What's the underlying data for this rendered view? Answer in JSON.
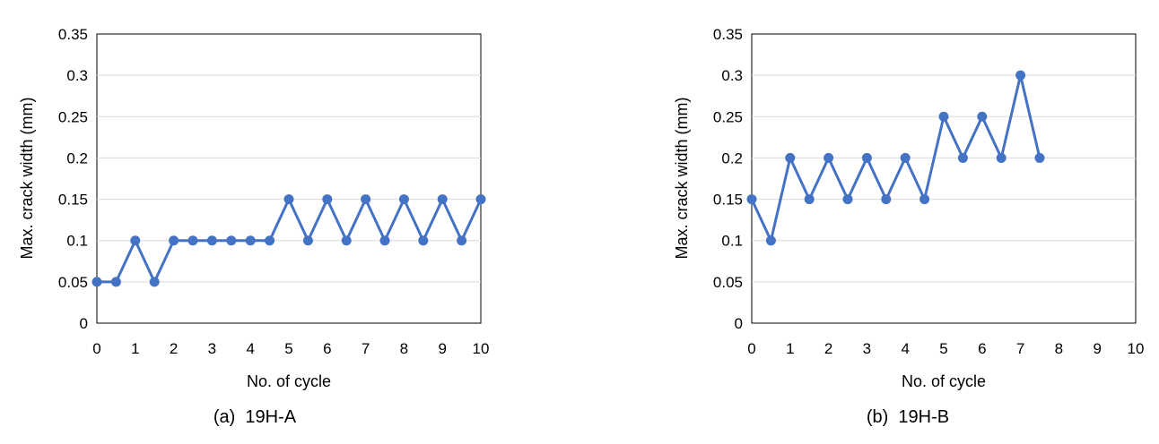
{
  "chart_data": [
    {
      "type": "line",
      "caption": "(a)  19H-A",
      "xlabel": "No. of cycle",
      "ylabel": "Max. crack width (mm)",
      "xlim": [
        0,
        10
      ],
      "ylim": [
        0,
        0.35
      ],
      "x_ticks": [
        0,
        1,
        2,
        3,
        4,
        5,
        6,
        7,
        8,
        9,
        10
      ],
      "y_ticks": [
        0,
        0.05,
        0.1,
        0.15,
        0.2,
        0.25,
        0.3,
        0.35
      ],
      "y_tick_labels": [
        "0",
        "0.05",
        "0.1",
        "0.15",
        "0.2",
        "0.25",
        "0.3",
        "0.35"
      ],
      "grid": "horizontal",
      "legend": "none",
      "color": "#4472C4",
      "series": [
        {
          "x": [
            0,
            0.5,
            1,
            1.5,
            2,
            2.5,
            3,
            3.5,
            4,
            4.5,
            5,
            5.5,
            6,
            6.5,
            7,
            7.5,
            8,
            8.5,
            9,
            9.5,
            10
          ],
          "y": [
            0.05,
            0.05,
            0.1,
            0.05,
            0.1,
            0.1,
            0.1,
            0.1,
            0.1,
            0.1,
            0.15,
            0.1,
            0.15,
            0.1,
            0.15,
            0.1,
            0.15,
            0.1,
            0.15,
            0.1,
            0.15
          ]
        }
      ]
    },
    {
      "type": "line",
      "caption": "(b)  19H-B",
      "xlabel": "No. of cycle",
      "ylabel": "Max. crack width (mm)",
      "xlim": [
        0,
        10
      ],
      "ylim": [
        0,
        0.35
      ],
      "x_ticks": [
        0,
        1,
        2,
        3,
        4,
        5,
        6,
        7,
        8,
        9,
        10
      ],
      "y_ticks": [
        0,
        0.05,
        0.1,
        0.15,
        0.2,
        0.25,
        0.3,
        0.35
      ],
      "y_tick_labels": [
        "0",
        "0.05",
        "0.1",
        "0.15",
        "0.2",
        "0.25",
        "0.3",
        "0.35"
      ],
      "grid": "horizontal",
      "legend": "none",
      "color": "#4472C4",
      "series": [
        {
          "x": [
            0,
            0.5,
            1,
            1.5,
            2,
            2.5,
            3,
            3.5,
            4,
            4.5,
            5,
            5.5,
            6,
            6.5,
            7,
            7.5
          ],
          "y": [
            0.15,
            0.1,
            0.2,
            0.15,
            0.2,
            0.15,
            0.2,
            0.15,
            0.2,
            0.15,
            0.25,
            0.2,
            0.25,
            0.2,
            0.3,
            0.2
          ]
        }
      ]
    }
  ]
}
